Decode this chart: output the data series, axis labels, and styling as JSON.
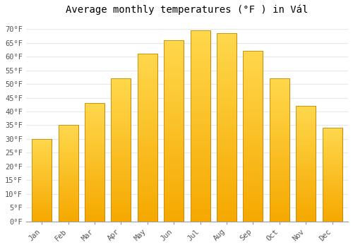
{
  "title": "Average monthly temperatures (°F ) in Vál",
  "months": [
    "Jan",
    "Feb",
    "Mar",
    "Apr",
    "May",
    "Jun",
    "Jul",
    "Aug",
    "Sep",
    "Oct",
    "Nov",
    "Dec"
  ],
  "values": [
    30,
    35,
    43,
    52,
    61,
    66,
    69.5,
    68.5,
    62,
    52,
    42,
    34
  ],
  "bar_color_bottom": "#F5A800",
  "bar_color_top": "#FFD84D",
  "bar_edge_color": "#C8880A",
  "ylim": [
    0,
    73
  ],
  "yticks": [
    0,
    5,
    10,
    15,
    20,
    25,
    30,
    35,
    40,
    45,
    50,
    55,
    60,
    65,
    70
  ],
  "ytick_labels": [
    "0°F",
    "5°F",
    "10°F",
    "15°F",
    "20°F",
    "25°F",
    "30°F",
    "35°F",
    "40°F",
    "45°F",
    "50°F",
    "55°F",
    "60°F",
    "65°F",
    "70°F"
  ],
  "title_fontsize": 10,
  "tick_fontsize": 7.5,
  "background_color": "#ffffff",
  "grid_color": "#e8e8e8",
  "bar_width": 0.75
}
